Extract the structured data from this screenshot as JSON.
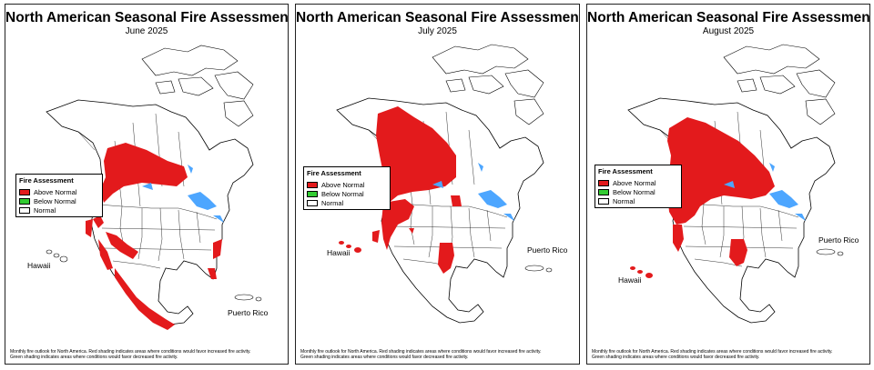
{
  "colors": {
    "above": "#e31a1c",
    "below": "#33cc33",
    "normal": "#ffffff",
    "water": "#4da6ff"
  },
  "panels": [
    {
      "title": "North American Seasonal Fire Assessment",
      "subtitle": "June 2025",
      "legend": {
        "title": "Fire Assessment",
        "above": "Above Normal",
        "below": "Below Normal",
        "normal": "Normal"
      },
      "hawaii": "Hawaii",
      "puerto_rico": "Puerto Rico",
      "footnote_1": "Monthly fire outlook for North America. Red shading indicates areas where conditions would favor increased fire activity.",
      "footnote_2": "Green shading indicates areas where conditions would favor decreased fire activity."
    },
    {
      "title": "North American Seasonal Fire Assessment",
      "subtitle": "July 2025",
      "legend": {
        "title": "Fire Assessment",
        "above": "Above Normal",
        "below": "Below Normal",
        "normal": "Normal"
      },
      "hawaii": "Hawaii",
      "puerto_rico": "Puerto Rico",
      "footnote_1": "Monthly fire outlook for North America. Red shading indicates areas where conditions would favor increased fire activity.",
      "footnote_2": "Green shading indicates areas where conditions would favor decreased fire activity."
    },
    {
      "title": "North American Seasonal Fire Assessment",
      "subtitle": "August 2025",
      "legend": {
        "title": "Fire Assessment",
        "above": "Above Normal",
        "below": "Below Normal",
        "normal": "Normal"
      },
      "hawaii": "Hawaii",
      "puerto_rico": "Puerto Rico",
      "footnote_1": "Monthly fire outlook for North America. Red shading indicates areas where conditions would favor increased fire activity.",
      "footnote_2": "Green shading indicates areas where conditions would favor decreased fire activity."
    }
  ]
}
